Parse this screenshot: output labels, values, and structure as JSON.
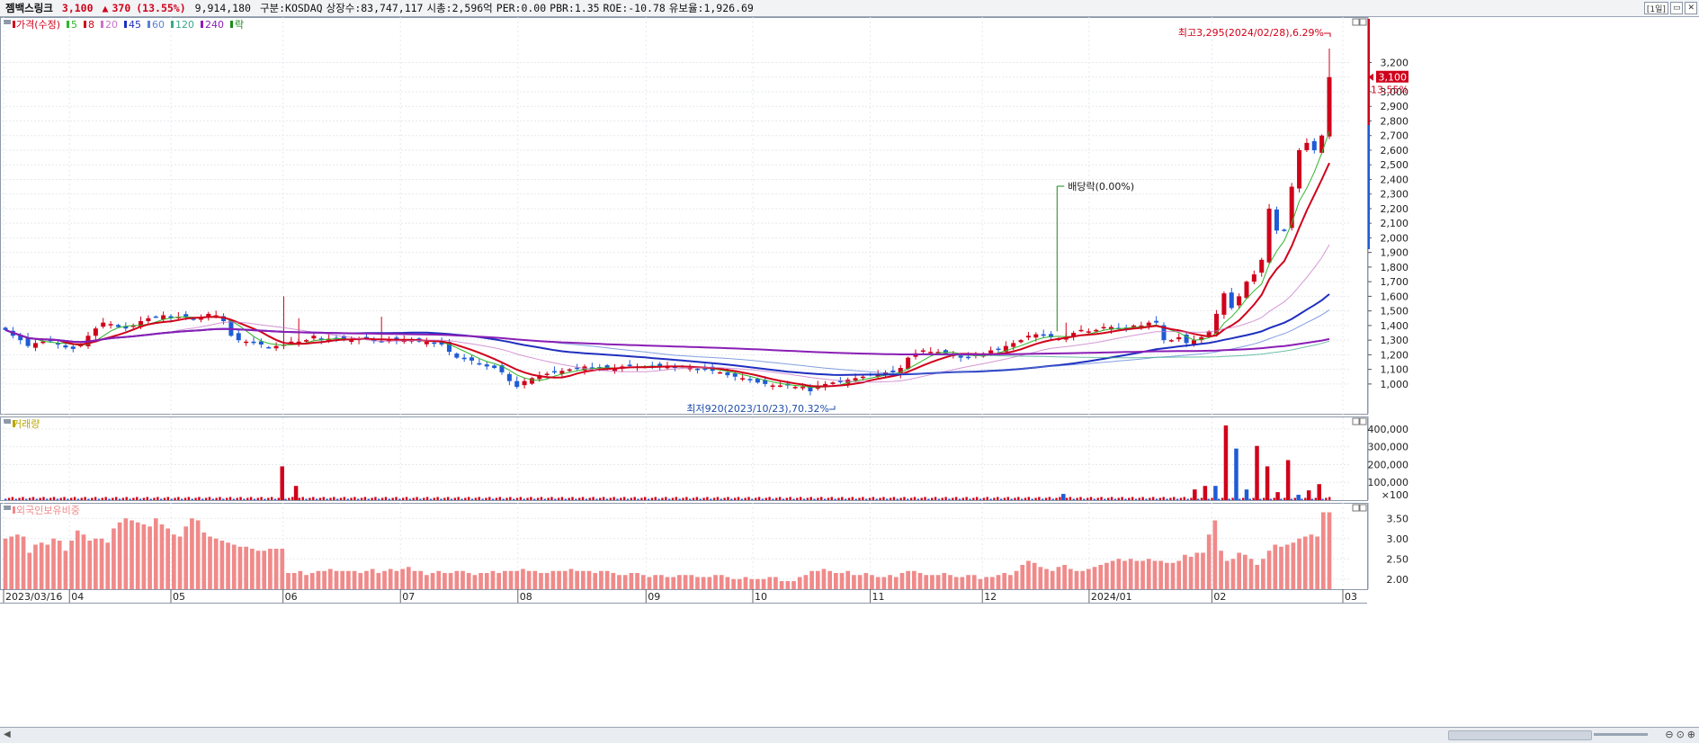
{
  "header": {
    "name": "젬백스링크",
    "price": "3,100",
    "arrow": "▲",
    "change": "370",
    "change_pct": "(13.55%)",
    "volume": "9,914,180",
    "market": "구분:KOSDAQ",
    "shares": "상장수:83,747,117",
    "cap": "시총:2,596억",
    "per": "PER:0.00",
    "pbr": "PBR:1.35",
    "roe": "ROE:-10.78",
    "float": "유보율:1,926.69",
    "period": "[1일]"
  },
  "colors": {
    "up": "#d0021b",
    "down": "#1e5bd6",
    "ma5": "#2fb52a",
    "ma8": "#d0021b",
    "ma20": "#c774c7",
    "ma45": "#1f2fbf",
    "ma60": "#5a7fd6",
    "ma120": "#3aa98a",
    "ma240": "#8a1fb5",
    "foreign": "#f08a8a",
    "grid": "#e6e9ee"
  },
  "legend": {
    "price": "가격(수정)",
    "items": [
      {
        "label": "5",
        "color": "#2fb52a"
      },
      {
        "label": "8",
        "color": "#d0021b"
      },
      {
        "label": "20",
        "color": "#c774c7"
      },
      {
        "label": "45",
        "color": "#1f2fbf"
      },
      {
        "label": "60",
        "color": "#5a7fd6"
      },
      {
        "label": "120",
        "color": "#3aa98a"
      },
      {
        "label": "240",
        "color": "#8a1fb5"
      },
      {
        "label": "락",
        "color": "#1a8a1a"
      }
    ],
    "volume": "거래량",
    "foreign": "외국인보유비중"
  },
  "chart_data": [
    {
      "type": "candlestick",
      "title": "가격(수정)",
      "x_ticks": [
        "2023/03/16",
        "04",
        "05",
        "06",
        "07",
        "08",
        "09",
        "10",
        "11",
        "12",
        "2024/01",
        "02",
        "03"
      ],
      "y_ticks": [
        "1,000",
        "1,100",
        "1,200",
        "1,300",
        "1,400",
        "1,500",
        "1,600",
        "1,700",
        "1,800",
        "1,900",
        "2,000",
        "2,100",
        "2,200",
        "2,300",
        "2,400",
        "2,500",
        "2,600",
        "2,700",
        "2,800",
        "2,900",
        "3,000",
        "3,100",
        "3,200"
      ],
      "ylim": [
        870,
        3400
      ],
      "current_price_label": "3,100",
      "current_pct_label": "13.55%",
      "annotations": {
        "high": "최고3,295(2024/02/28),6.29%",
        "low": "최저920(2023/10/23),70.32%",
        "dividend": "배당락(0.00%)"
      },
      "close_series": [
        1370,
        1330,
        1300,
        1260,
        1280,
        1290,
        1300,
        1270,
        1250,
        1240,
        1270,
        1330,
        1380,
        1420,
        1410,
        1390,
        1380,
        1400,
        1430,
        1450,
        1460,
        1470,
        1450,
        1460,
        1460,
        1440,
        1450,
        1480,
        1470,
        1430,
        1330,
        1300,
        1290,
        1280,
        1270,
        1250,
        1260,
        1270,
        1290,
        1290,
        1300,
        1330,
        1300,
        1310,
        1310,
        1300,
        1300,
        1310,
        1320,
        1300,
        1290,
        1300,
        1300,
        1300,
        1300,
        1290,
        1290,
        1280,
        1270,
        1220,
        1180,
        1170,
        1160,
        1140,
        1120,
        1110,
        1080,
        1020,
        980,
        1020,
        1040,
        1060,
        1070,
        1080,
        1090,
        1100,
        1110,
        1120,
        1110,
        1110,
        1100,
        1110,
        1120,
        1130,
        1120,
        1120,
        1120,
        1120,
        1120,
        1110,
        1120,
        1110,
        1100,
        1100,
        1090,
        1080,
        1060,
        1050,
        1040,
        1030,
        1010,
        1000,
        990,
        990,
        990,
        980,
        980,
        950,
        990,
        1000,
        1010,
        1020,
        1030,
        1040,
        1050,
        1060,
        1070,
        1080,
        1080,
        1110,
        1180,
        1210,
        1230,
        1220,
        1220,
        1210,
        1200,
        1180,
        1180,
        1200,
        1210,
        1230,
        1240,
        1260,
        1280,
        1300,
        1330,
        1340,
        1330,
        1320,
        1310,
        1320,
        1350,
        1370,
        1360,
        1370,
        1390,
        1390,
        1380,
        1380,
        1400,
        1400,
        1420,
        1420,
        1300,
        1300,
        1320,
        1280,
        1300,
        1320,
        1360,
        1480,
        1620,
        1520,
        1600,
        1700,
        1750,
        1850,
        2200,
        2050,
        2050,
        2350,
        2600,
        2650,
        2600,
        2700,
        3100
      ],
      "ma": [
        {
          "name": "5",
          "role": "green"
        },
        {
          "name": "8",
          "role": "red"
        },
        {
          "name": "20",
          "role": "pink"
        },
        {
          "name": "45",
          "role": "blue"
        },
        {
          "name": "60",
          "role": "lightblue"
        },
        {
          "name": "120",
          "role": "teal"
        },
        {
          "name": "240",
          "role": "purple"
        }
      ]
    },
    {
      "type": "bar",
      "title": "거래량",
      "y_ticks": [
        "×100",
        "100,000",
        "200,000",
        "300,000",
        "400,000"
      ],
      "ylim": [
        0,
        430000
      ],
      "spikes": [
        {
          "bar": 80,
          "value": 190000,
          "up": true
        },
        {
          "bar": 84,
          "value": 80000,
          "up": true
        },
        {
          "bar": 306,
          "value": 35000,
          "up": false
        },
        {
          "bar": 344,
          "value": 60000,
          "up": true
        },
        {
          "bar": 347,
          "value": 80000,
          "up": true
        },
        {
          "bar": 350,
          "value": 80000,
          "up": false
        },
        {
          "bar": 353,
          "value": 420000,
          "up": true
        },
        {
          "bar": 356,
          "value": 290000,
          "up": false
        },
        {
          "bar": 359,
          "value": 60000,
          "up": false
        },
        {
          "bar": 362,
          "value": 305000,
          "up": true
        },
        {
          "bar": 365,
          "value": 190000,
          "up": true
        },
        {
          "bar": 368,
          "value": 45000,
          "up": true
        },
        {
          "bar": 371,
          "value": 225000,
          "up": true
        },
        {
          "bar": 374,
          "value": 30000,
          "up": false
        },
        {
          "bar": 377,
          "value": 55000,
          "up": true
        },
        {
          "bar": 380,
          "value": 90000,
          "up": true
        }
      ]
    },
    {
      "type": "bar",
      "title": "외국인보유비중",
      "y_ticks": [
        "2.00",
        "2.50",
        "3.00",
        "3.50"
      ],
      "ylim": [
        1.75,
        3.75
      ],
      "values": [
        3.0,
        3.05,
        3.1,
        3.05,
        2.65,
        2.85,
        2.9,
        2.85,
        3.0,
        2.95,
        2.7,
        2.95,
        3.2,
        3.1,
        2.95,
        3.0,
        3.0,
        2.9,
        3.25,
        3.4,
        3.5,
        3.45,
        3.4,
        3.35,
        3.3,
        3.5,
        3.35,
        3.25,
        3.1,
        3.05,
        3.3,
        3.5,
        3.45,
        3.15,
        3.05,
        3.0,
        2.95,
        2.9,
        2.85,
        2.8,
        2.8,
        2.75,
        2.7,
        2.7,
        2.75,
        2.75,
        2.75,
        2.15,
        2.15,
        2.2,
        2.1,
        2.15,
        2.2,
        2.2,
        2.25,
        2.2,
        2.2,
        2.2,
        2.2,
        2.15,
        2.2,
        2.25,
        2.15,
        2.2,
        2.25,
        2.2,
        2.25,
        2.3,
        2.2,
        2.2,
        2.1,
        2.15,
        2.2,
        2.15,
        2.15,
        2.2,
        2.2,
        2.15,
        2.1,
        2.15,
        2.15,
        2.2,
        2.15,
        2.2,
        2.2,
        2.2,
        2.25,
        2.2,
        2.2,
        2.15,
        2.15,
        2.2,
        2.2,
        2.2,
        2.25,
        2.2,
        2.2,
        2.2,
        2.15,
        2.2,
        2.2,
        2.15,
        2.1,
        2.1,
        2.15,
        2.15,
        2.1,
        2.05,
        2.1,
        2.1,
        2.05,
        2.05,
        2.1,
        2.1,
        2.1,
        2.05,
        2.05,
        2.05,
        2.1,
        2.1,
        2.05,
        2.0,
        2.0,
        2.05,
        2.0,
        2.0,
        2.0,
        2.05,
        2.05,
        1.95,
        1.95,
        1.95,
        2.05,
        2.1,
        2.2,
        2.2,
        2.25,
        2.2,
        2.15,
        2.15,
        2.2,
        2.1,
        2.1,
        2.15,
        2.1,
        2.05,
        2.05,
        2.1,
        2.05,
        2.15,
        2.2,
        2.2,
        2.15,
        2.1,
        2.1,
        2.1,
        2.15,
        2.1,
        2.05,
        2.05,
        2.1,
        2.1,
        2.0,
        2.05,
        2.05,
        2.1,
        2.15,
        2.1,
        2.2,
        2.35,
        2.45,
        2.4,
        2.3,
        2.25,
        2.2,
        2.3,
        2.35,
        2.25,
        2.2,
        2.2,
        2.25,
        2.3,
        2.35,
        2.4,
        2.45,
        2.5,
        2.45,
        2.5,
        2.45,
        2.45,
        2.5,
        2.45,
        2.45,
        2.4,
        2.4,
        2.45,
        2.6,
        2.55,
        2.65,
        2.65,
        3.1,
        3.45,
        2.7,
        2.45,
        2.5,
        2.65,
        2.6,
        2.5,
        2.35,
        2.5,
        2.7,
        2.85,
        2.8,
        2.85,
        2.9,
        3.0,
        3.05,
        3.1,
        3.05,
        3.65,
        3.65
      ]
    }
  ]
}
